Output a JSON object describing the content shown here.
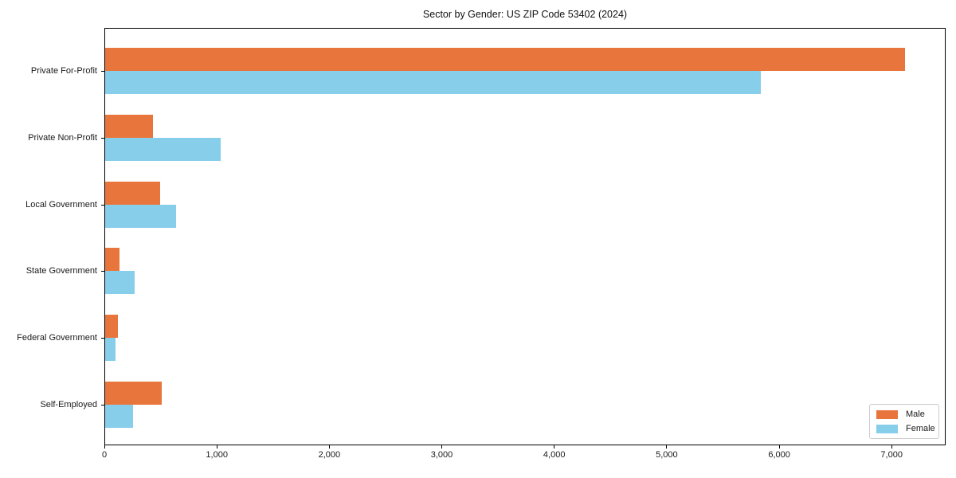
{
  "chart_data": {
    "type": "bar",
    "orientation": "horizontal",
    "title": "Sector by Gender: US ZIP Code 53402 (2024)",
    "categories": [
      "Private For-Profit",
      "Private Non-Profit",
      "Local Government",
      "State Government",
      "Federal Government",
      "Self-Employed"
    ],
    "series": [
      {
        "name": "Male",
        "color": "#e8763c",
        "values": [
          7110,
          425,
          485,
          125,
          110,
          505
        ]
      },
      {
        "name": "Female",
        "color": "#87ceeb",
        "values": [
          5830,
          1025,
          630,
          265,
          90,
          250
        ]
      }
    ],
    "xlim": [
      0,
      7480
    ],
    "x_ticks": [
      0,
      1000,
      2000,
      3000,
      4000,
      5000,
      6000,
      7000
    ],
    "x_tick_labels": [
      "0",
      "1,000",
      "2,000",
      "3,000",
      "4,000",
      "5,000",
      "6,000",
      "7,000"
    ],
    "xlabel": "",
    "ylabel": "",
    "grid": false,
    "legend_position": "lower right",
    "colors": {
      "male": "#e8763c",
      "female": "#87ceeb",
      "spine": "#000000",
      "text": "#191919"
    }
  }
}
